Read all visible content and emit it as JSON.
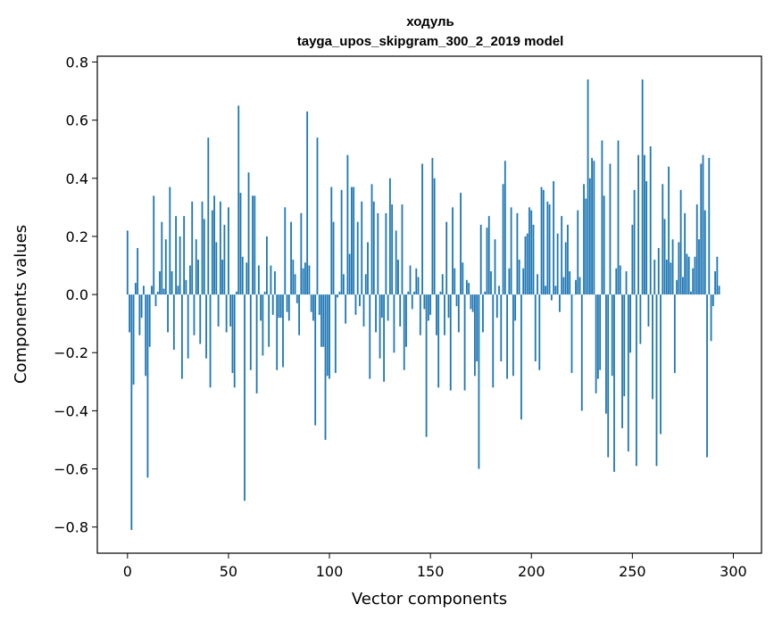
{
  "chart_data": {
    "type": "bar",
    "title_line1": "ходуль",
    "title_line2": "tayga_upos_skipgram_300_2_2019 model",
    "xlabel": "Vector components",
    "ylabel": "Components values",
    "xlim": [
      -14.95,
      313.95
    ],
    "ylim": [
      -0.89,
      0.82
    ],
    "x_ticks": [
      0,
      50,
      100,
      150,
      200,
      250,
      300
    ],
    "x_tick_labels": [
      "0",
      "50",
      "100",
      "150",
      "200",
      "250",
      "300"
    ],
    "y_ticks": [
      -0.8,
      -0.6,
      -0.4,
      -0.2,
      0.0,
      0.2,
      0.4,
      0.6,
      0.8
    ],
    "y_tick_labels": [
      "−0.8",
      "−0.6",
      "−0.4",
      "−0.2",
      "0.0",
      "0.2",
      "0.4",
      "0.6",
      "0.8"
    ],
    "bar_color": "#1f77b4",
    "values": [
      0.22,
      -0.13,
      -0.81,
      -0.31,
      0.04,
      0.16,
      -0.14,
      -0.08,
      0.03,
      -0.28,
      -0.63,
      -0.18,
      0.03,
      0.34,
      -0.04,
      0.01,
      0.08,
      0.25,
      0.02,
      0.19,
      -0.13,
      0.37,
      0.08,
      -0.19,
      0.27,
      0.03,
      0.2,
      -0.29,
      0.27,
      0.05,
      -0.22,
      0.1,
      0.32,
      -0.14,
      0.19,
      0.12,
      -0.17,
      0.32,
      0.26,
      -0.22,
      0.54,
      -0.32,
      0.29,
      0.34,
      0.18,
      -0.11,
      0.32,
      0.12,
      0.24,
      -0.13,
      0.3,
      -0.11,
      -0.27,
      -0.32,
      0.01,
      0.65,
      0.35,
      0.13,
      -0.71,
      0.11,
      0.42,
      -0.26,
      0.34,
      0.34,
      -0.34,
      0.1,
      -0.09,
      -0.21,
      0.01,
      0.2,
      -0.18,
      0.1,
      -0.07,
      0.08,
      -0.26,
      -0.08,
      -0.08,
      -0.25,
      0.3,
      -0.06,
      -0.09,
      0.25,
      0.12,
      0.07,
      -0.03,
      -0.14,
      0.28,
      0.09,
      0.11,
      0.63,
      0.1,
      -0.06,
      -0.09,
      -0.45,
      0.54,
      -0.07,
      -0.18,
      -0.18,
      -0.5,
      -0.28,
      -0.29,
      0.37,
      0.25,
      -0.27,
      -0.01,
      0.01,
      0.36,
      0.07,
      -0.1,
      0.48,
      0.14,
      0.37,
      0.37,
      -0.07,
      0.25,
      -0.04,
      0.32,
      -0.11,
      0.07,
      0.18,
      -0.29,
      0.38,
      0.32,
      -0.13,
      0.28,
      -0.22,
      -0.08,
      -0.3,
      0.28,
      -0.09,
      0.4,
      0.31,
      -0.2,
      0.22,
      0.12,
      -0.11,
      0.31,
      -0.26,
      -0.18,
      0.01,
      0.1,
      -0.05,
      0.01,
      0.09,
      0.06,
      -0.14,
      0.45,
      -0.05,
      -0.49,
      -0.09,
      -0.07,
      0.47,
      0.4,
      -0.14,
      -0.32,
      0.01,
      0.07,
      -0.14,
      0.25,
      -0.08,
      -0.33,
      0.3,
      0.09,
      -0.04,
      -0.13,
      0.35,
      0.11,
      -0.33,
      0.05,
      0.04,
      -0.05,
      -0.06,
      -0.28,
      -0.23,
      -0.6,
      0.24,
      -0.13,
      0.01,
      0.23,
      0.27,
      0.08,
      -0.32,
      0.19,
      -0.08,
      0.03,
      -0.23,
      0.38,
      0.46,
      -0.29,
      0.09,
      0.3,
      -0.28,
      -0.09,
      0.28,
      0.12,
      -0.43,
      0.09,
      0.2,
      0.21,
      0.3,
      0.29,
      0.24,
      -0.23,
      0.07,
      -0.26,
      0.37,
      0.36,
      0.03,
      0.32,
      0.31,
      -0.02,
      0.39,
      0.03,
      0.21,
      -0.06,
      0.27,
      0.06,
      0.18,
      0.24,
      0.08,
      -0.27,
      0.0,
      0.05,
      0.29,
      0.06,
      -0.4,
      0.38,
      0.33,
      0.74,
      0.4,
      0.47,
      0.46,
      -0.34,
      -0.29,
      -0.26,
      0.53,
      0.34,
      -0.41,
      -0.56,
      0.45,
      -0.28,
      -0.61,
      0.09,
      0.53,
      0.1,
      -0.46,
      -0.35,
      0.08,
      -0.54,
      -0.2,
      0.24,
      0.36,
      -0.59,
      0.48,
      -0.17,
      0.74,
      0.48,
      0.39,
      -0.11,
      0.51,
      -0.36,
      0.12,
      -0.59,
      0.16,
      -0.48,
      0.38,
      0.26,
      0.12,
      0.44,
      0.11,
      0.19,
      -0.27,
      0.05,
      0.18,
      0.36,
      0.06,
      0.28,
      0.14,
      0.13,
      0.01,
      0.09,
      0.13,
      0.31,
      0.19,
      0.45,
      0.48,
      0.29,
      -0.56,
      0.47,
      -0.16,
      -0.04,
      0.08,
      0.13,
      0.03
    ]
  }
}
